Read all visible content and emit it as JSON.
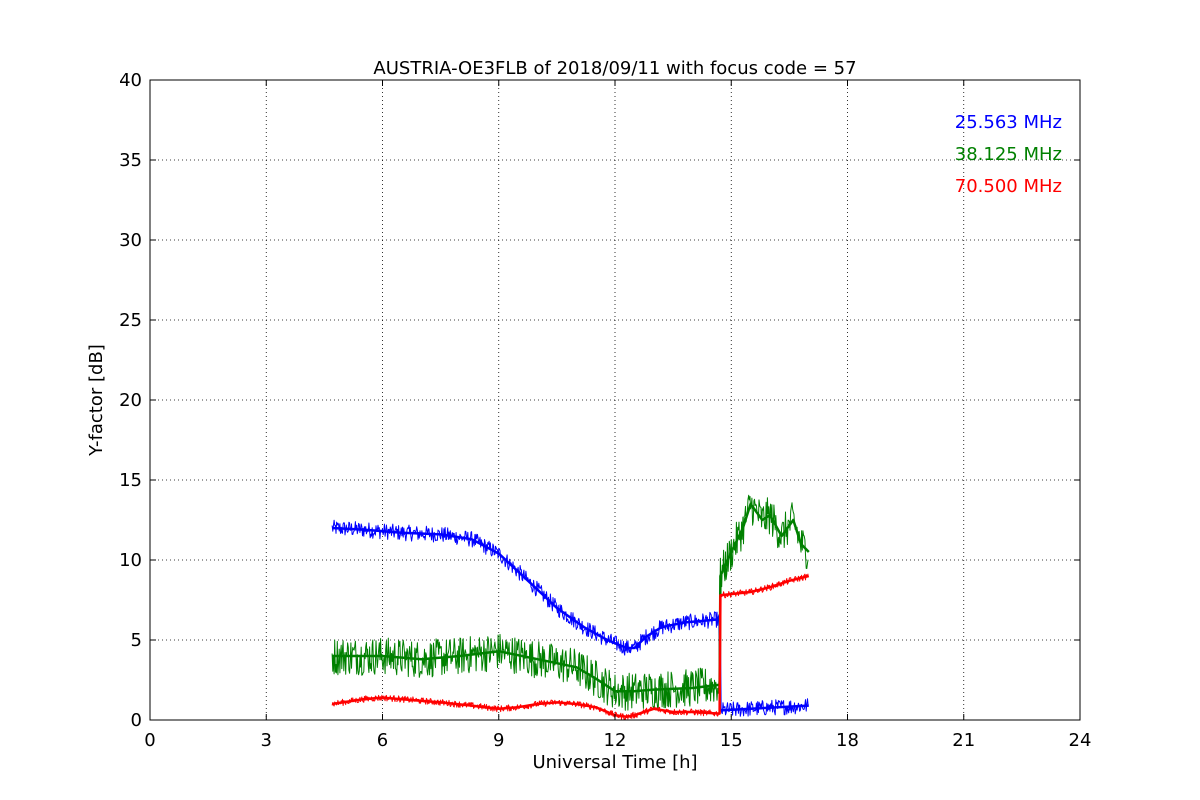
{
  "chart_data": {
    "type": "line",
    "title": "AUSTRIA-OE3FLB of 2018/09/11 with focus code = 57",
    "xlabel": "Universal Time [h]",
    "ylabel": "Y-factor [dB]",
    "xlim": [
      0,
      24
    ],
    "ylim": [
      0,
      40
    ],
    "xticks": [
      0,
      3,
      6,
      9,
      12,
      15,
      18,
      21,
      24
    ],
    "yticks": [
      0,
      5,
      10,
      15,
      20,
      25,
      30,
      35,
      40
    ],
    "grid": true,
    "legend_placement": "top-right",
    "series": [
      {
        "name": "25.563 MHz",
        "color": "#0000ff",
        "noise": 0.5,
        "x": [
          4.7,
          5.5,
          6.5,
          7.5,
          8.3,
          9.0,
          9.8,
          10.5,
          11.2,
          11.8,
          12.3,
          12.5,
          12.8,
          13.2,
          13.8,
          14.3,
          14.7,
          14.72,
          15.5,
          16.2,
          17.0
        ],
        "y": [
          12.0,
          11.9,
          11.7,
          11.6,
          11.3,
          10.4,
          8.6,
          7.0,
          5.8,
          5.0,
          4.5,
          4.5,
          5.2,
          5.8,
          6.1,
          6.2,
          6.3,
          0.6,
          0.7,
          0.8,
          0.9
        ]
      },
      {
        "name": "38.125 MHz",
        "color": "#008000",
        "noise": 1.2,
        "x": [
          4.7,
          6.0,
          7.0,
          8.0,
          9.0,
          10.0,
          11.0,
          11.5,
          12.0,
          12.5,
          13.0,
          14.0,
          14.7,
          14.72,
          15.0,
          15.3,
          15.5,
          15.8,
          16.0,
          16.3,
          16.6,
          16.8,
          17.0
        ],
        "y": [
          4.0,
          4.0,
          3.8,
          4.0,
          4.3,
          3.8,
          3.3,
          2.6,
          1.8,
          1.8,
          1.9,
          2.0,
          2.2,
          9.0,
          10.5,
          12.0,
          13.5,
          12.5,
          12.8,
          11.5,
          12.5,
          11.0,
          10.5
        ]
      },
      {
        "name": "70.500 MHz",
        "color": "#ff0000",
        "noise": 0.2,
        "x": [
          4.7,
          5.5,
          6.0,
          6.5,
          7.5,
          8.3,
          9.0,
          9.5,
          10.0,
          10.5,
          11.0,
          11.5,
          12.0,
          12.3,
          12.5,
          13.0,
          13.5,
          14.0,
          14.7,
          14.72,
          15.5,
          16.0,
          16.5,
          17.0
        ],
        "y": [
          1.0,
          1.3,
          1.4,
          1.3,
          1.1,
          0.9,
          0.7,
          0.8,
          1.0,
          1.1,
          1.0,
          0.8,
          0.3,
          0.2,
          0.3,
          0.7,
          0.5,
          0.5,
          0.4,
          7.8,
          8.0,
          8.3,
          8.7,
          9.0
        ]
      }
    ]
  }
}
